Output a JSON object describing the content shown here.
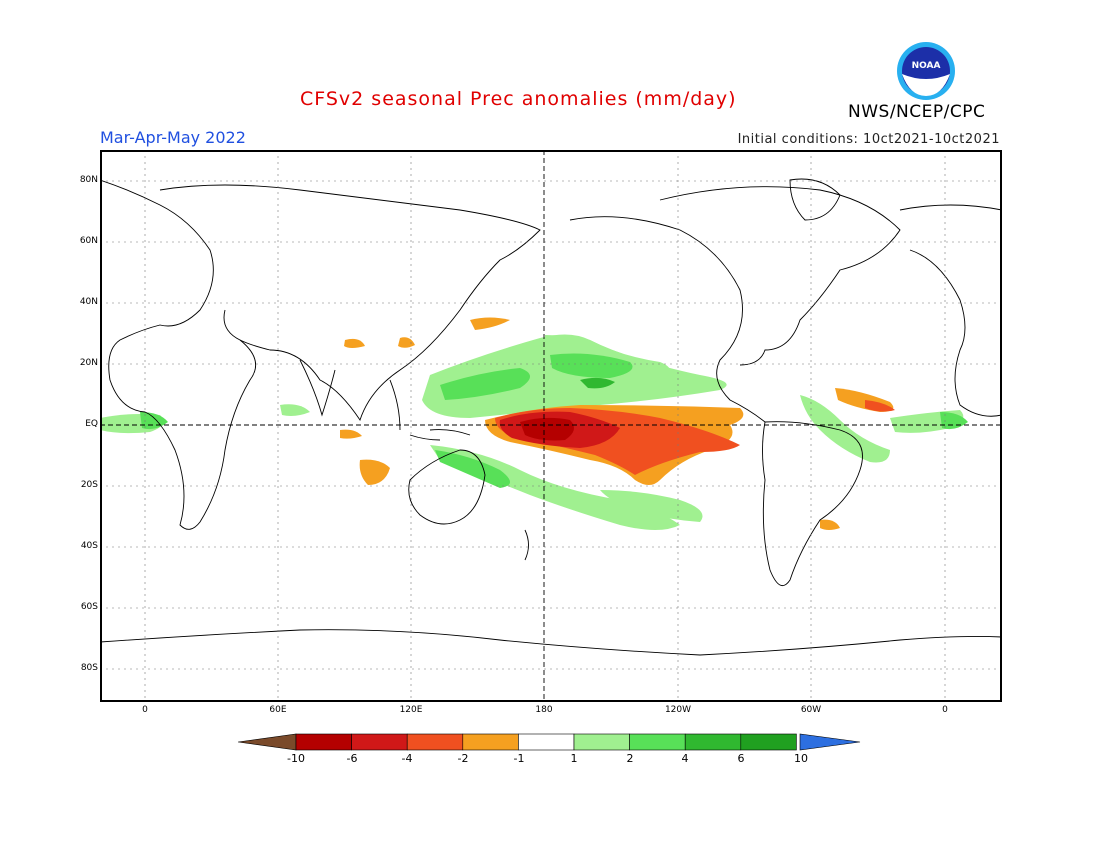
{
  "title": "CFSv2 seasonal Prec anomalies (mm/day)",
  "season": "Mar-Apr-May 2022",
  "initial_conditions": "Initial conditions: 10ct2021-10ct2021",
  "agency": "NWS/NCEP/CPC",
  "logo_text": "NOAA",
  "lat_labels": [
    "80N",
    "60N",
    "40N",
    "20N",
    "EQ",
    "20S",
    "40S",
    "60S",
    "80S"
  ],
  "lon_labels": [
    "0",
    "60E",
    "120E",
    "180",
    "120W",
    "60W",
    "0"
  ],
  "colorbar": {
    "labels": [
      "-10",
      "-6",
      "-4",
      "-2",
      "-1",
      "1",
      "2",
      "4",
      "6",
      "10"
    ],
    "colors": [
      "#7a4a2a",
      "#b40000",
      "#d01818",
      "#f05020",
      "#f5a020",
      "#ffffff",
      "#a0f090",
      "#58e058",
      "#30b830",
      "#20a020",
      "#2d6fe0"
    ]
  },
  "colors": {
    "dry_strong": "#b40000",
    "dry_medium": "#d01818",
    "dry_light": "#f05020",
    "dry_weak": "#f5a020",
    "wet_weak": "#a0f090",
    "wet_light": "#58e058",
    "wet_medium": "#30b830"
  }
}
